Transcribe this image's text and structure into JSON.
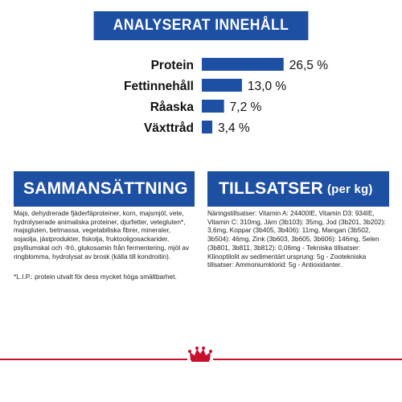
{
  "analysis": {
    "title": "ANALYSERAT INNEHÅLL"
  },
  "chart_data": {
    "type": "bar",
    "orientation": "horizontal",
    "categories": [
      "Protein",
      "Fettinnehåll",
      "Råaska",
      "Växttråd"
    ],
    "values": [
      26.5,
      13.0,
      7.2,
      3.4
    ],
    "value_labels": [
      "26,5 %",
      "13,0 %",
      "7,2 %",
      "3,4 %"
    ],
    "bar_color": "#1d4fa3"
  },
  "composition": {
    "title": "SAMMANSÄTTNING",
    "text": "Majs, dehydrerade fjäderfäproteiner, korn, majsmjöl, vete, hydrolyserade animaliska proteiner, djurfetter, vetegluten*, majsgluten, betmassa, vegetabiliska fibrer, mineraler, sojaolja, jästprodukter, fiskolja, fruktooligosackarider, psylliumskal och -frö, glukosamin från fermentering, mjöl av ringblomma, hydrolysat av brosk (källa till kondroitin).",
    "note": "*L.I.P.: protein utvalt för dess mycket höga smältbarhet."
  },
  "additives": {
    "title": "TILLSATSER",
    "title_suffix": "(per kg)",
    "text": "Näringstillsatser: Vitamin A: 24400IE, Vitamin D3: 934IE, Vitamin C: 310mg, Järn (3b103): 35mg, Jod (3b201, 3b202): 3,6mg, Koppar (3b405, 3b406): 11mg, Mangan (3b502, 3b504): 46mg, Zink (3b603, 3b605, 3b606): 146mg, Selen (3b801, 3b811, 3b812): 0,06mg - Tekniska tillsatser: Klinoptilolit av sedimentärt ursprung: 5g - Zootekniska tillsatser: Ammoniumklorid: 5g - Antioxidanter."
  },
  "colors": {
    "brand_blue": "#1d4fa3",
    "brand_red": "#c8102e"
  },
  "footer": {
    "logo_icon": "crown-icon"
  }
}
